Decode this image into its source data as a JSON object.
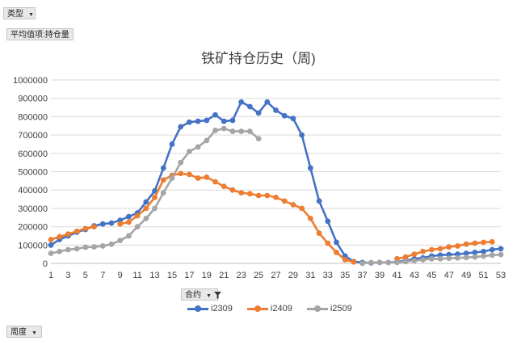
{
  "controls": {
    "type_button": "类型",
    "avg_button": "平均值项:持仓量",
    "contract_button": "合约",
    "week_button": "周度"
  },
  "chart_data": {
    "type": "line",
    "title": "铁矿持仓历史（周)",
    "xlabel": "",
    "ylabel": "",
    "ylim": [
      0,
      1000000
    ],
    "yticks": [
      "0",
      "100000",
      "200000",
      "300000",
      "400000",
      "500000",
      "600000",
      "700000",
      "800000",
      "900000",
      "1000000"
    ],
    "xticks": [
      "1",
      "3",
      "5",
      "7",
      "9",
      "11",
      "13",
      "15",
      "17",
      "19",
      "21",
      "23",
      "25",
      "27",
      "29",
      "31",
      "33",
      "35",
      "37",
      "39",
      "41",
      "43",
      "45",
      "47",
      "49",
      "51",
      "53"
    ],
    "x": [
      1,
      2,
      3,
      4,
      5,
      6,
      7,
      8,
      9,
      10,
      11,
      12,
      13,
      14,
      15,
      16,
      17,
      18,
      19,
      20,
      21,
      22,
      23,
      24,
      25,
      26,
      27,
      28,
      29,
      30,
      31,
      32,
      33,
      34,
      35,
      36,
      37,
      38,
      39,
      40,
      41,
      42,
      43,
      44,
      45,
      46,
      47,
      48,
      49,
      50,
      51,
      52,
      53
    ],
    "grid": true,
    "legend_position": "bottom",
    "series": [
      {
        "name": "i2309",
        "color": "#4472c4",
        "values": [
          100000,
          130000,
          150000,
          170000,
          185000,
          205000,
          215000,
          220000,
          235000,
          255000,
          275000,
          335000,
          395000,
          520000,
          650000,
          745000,
          770000,
          775000,
          780000,
          810000,
          775000,
          780000,
          880000,
          855000,
          820000,
          880000,
          835000,
          805000,
          790000,
          700000,
          520000,
          340000,
          230000,
          115000,
          40000,
          10000,
          5000,
          3000,
          5000,
          5000,
          8000,
          15000,
          25000,
          30000,
          40000,
          45000,
          48000,
          50000,
          55000,
          60000,
          65000,
          75000,
          80000
        ]
      },
      {
        "name": "i2409",
        "color": "#ed7d31",
        "values": [
          130000,
          145000,
          160000,
          175000,
          190000,
          200000,
          null,
          null,
          215000,
          225000,
          260000,
          300000,
          360000,
          455000,
          480000,
          490000,
          485000,
          465000,
          470000,
          445000,
          420000,
          400000,
          385000,
          380000,
          370000,
          370000,
          360000,
          340000,
          320000,
          300000,
          245000,
          165000,
          110000,
          60000,
          20000,
          8000,
          null,
          null,
          null,
          null,
          25000,
          35000,
          50000,
          65000,
          75000,
          80000,
          90000,
          95000,
          105000,
          110000,
          115000,
          118000,
          null
        ]
      },
      {
        "name": "i2509",
        "color": "#a5a5a5",
        "values": [
          55000,
          65000,
          75000,
          80000,
          88000,
          90000,
          95000,
          105000,
          125000,
          150000,
          200000,
          245000,
          300000,
          385000,
          465000,
          550000,
          610000,
          635000,
          670000,
          725000,
          735000,
          720000,
          720000,
          720000,
          680000,
          null,
          null,
          null,
          null,
          null,
          null,
          null,
          null,
          null,
          null,
          null,
          0,
          5000,
          5000,
          5000,
          5000,
          10000,
          15000,
          20000,
          25000,
          25000,
          28000,
          30000,
          32000,
          35000,
          40000,
          45000,
          48000
        ]
      }
    ]
  }
}
